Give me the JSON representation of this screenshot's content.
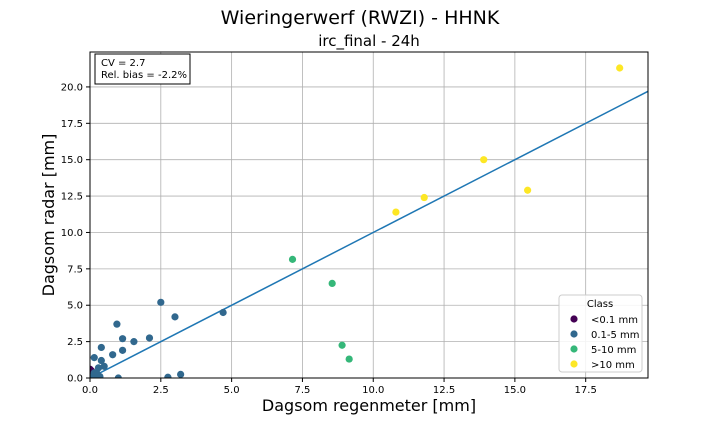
{
  "chart_data": {
    "type": "scatter",
    "title": "Wieringerwerf (RWZI) - HHNK",
    "subtitle": "irc_final - 24h",
    "xlabel": "Dagsom regenmeter [mm]",
    "ylabel": "Dagsom radar [mm]",
    "xlim": [
      0,
      19.7
    ],
    "ylim": [
      0,
      22.4
    ],
    "xticks": [
      0.0,
      2.5,
      5.0,
      7.5,
      10.0,
      12.5,
      15.0,
      17.5
    ],
    "yticks": [
      0.0,
      2.5,
      5.0,
      7.5,
      10.0,
      12.5,
      15.0,
      17.5,
      20.0
    ],
    "xtick_labels": [
      "0.0",
      "2.5",
      "5.0",
      "7.5",
      "10.0",
      "12.5",
      "15.0",
      "17.5"
    ],
    "ytick_labels": [
      "0.0",
      "2.5",
      "5.0",
      "7.5",
      "10.0",
      "12.5",
      "15.0",
      "17.5",
      "20.0"
    ],
    "grid": true,
    "stats": {
      "cv": "CV = 2.7",
      "bias": "Rel. bias = -2.2%"
    },
    "regression_line": {
      "x": [
        0,
        19.7
      ],
      "y": [
        0,
        19.7
      ],
      "color": "#1f77b4"
    },
    "legend": {
      "title": "Class",
      "position": "lower-right"
    },
    "series": [
      {
        "name": "<0.1 mm",
        "color": "#440154",
        "points": [
          [
            0.0,
            0.0
          ],
          [
            0.02,
            0.2
          ],
          [
            0.05,
            0.5
          ],
          [
            0.0,
            0.6
          ],
          [
            0.04,
            0.05
          ]
        ]
      },
      {
        "name": "0.1-5 mm",
        "color": "#31688e",
        "points": [
          [
            0.1,
            0.1
          ],
          [
            0.15,
            0.35
          ],
          [
            0.2,
            0.0
          ],
          [
            0.25,
            0.3
          ],
          [
            0.3,
            0.7
          ],
          [
            0.35,
            0.1
          ],
          [
            0.15,
            1.4
          ],
          [
            0.4,
            1.2
          ],
          [
            0.4,
            2.1
          ],
          [
            0.5,
            0.8
          ],
          [
            0.8,
            1.6
          ],
          [
            0.95,
            3.7
          ],
          [
            1.0,
            0.0
          ],
          [
            1.15,
            1.9
          ],
          [
            1.15,
            2.7
          ],
          [
            1.55,
            2.5
          ],
          [
            2.1,
            2.75
          ],
          [
            2.5,
            5.2
          ],
          [
            2.75,
            0.05
          ],
          [
            3.0,
            4.2
          ],
          [
            3.2,
            0.25
          ],
          [
            4.7,
            4.5
          ]
        ]
      },
      {
        "name": "5-10 mm",
        "color": "#35b779",
        "points": [
          [
            7.15,
            8.15
          ],
          [
            8.55,
            6.5
          ],
          [
            8.9,
            2.25
          ],
          [
            9.15,
            1.3
          ]
        ]
      },
      {
        "name": ">10 mm",
        "color": "#fde725",
        "points": [
          [
            10.8,
            11.4
          ],
          [
            11.8,
            12.4
          ],
          [
            13.9,
            15.0
          ],
          [
            15.45,
            12.9
          ],
          [
            18.7,
            21.3
          ]
        ]
      }
    ]
  }
}
